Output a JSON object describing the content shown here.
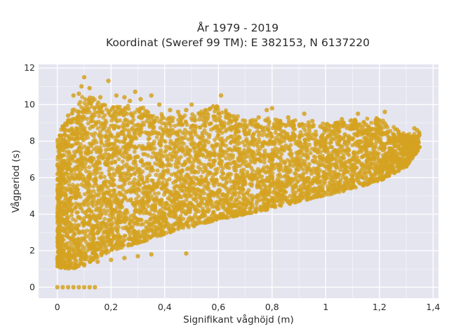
{
  "chart_data": {
    "type": "scatter",
    "title_lines": [
      "År 1979 - 2019",
      "Koordinat (Sweref 99 TM): E 382153, N 6137220"
    ],
    "xlabel": "Signifikant våghöjd (m)",
    "ylabel": "Vågperiod (s)",
    "xlim": [
      -0.07,
      1.42
    ],
    "ylim": [
      -0.6,
      12.2
    ],
    "x_ticks": [
      0,
      0.2,
      0.4,
      0.6,
      0.8,
      1,
      1.2,
      1.4
    ],
    "x_tick_labels": [
      "0",
      "0,2",
      "0,4",
      "0,6",
      "0,8",
      "1",
      "1,2",
      "1,4"
    ],
    "y_ticks": [
      0,
      2,
      4,
      6,
      8,
      10,
      12
    ],
    "y_tick_labels": [
      "0",
      "2",
      "4",
      "6",
      "8",
      "10",
      "12"
    ],
    "grid": true,
    "legend": "none",
    "series_color": "#d4a220",
    "background_color": "#e5e5f0",
    "band_description_points": [
      {
        "x": 0.0,
        "y_low": 1.1,
        "y_high": 8.8
      },
      {
        "x": 0.05,
        "y_low": 1.0,
        "y_high": 10.5
      },
      {
        "x": 0.1,
        "y_low": 1.2,
        "y_high": 11.4
      },
      {
        "x": 0.2,
        "y_low": 2.0,
        "y_high": 10.6
      },
      {
        "x": 0.3,
        "y_low": 2.4,
        "y_high": 10.6
      },
      {
        "x": 0.4,
        "y_low": 2.9,
        "y_high": 10.0
      },
      {
        "x": 0.5,
        "y_low": 3.3,
        "y_high": 10.0
      },
      {
        "x": 0.6,
        "y_low": 3.7,
        "y_high": 10.5
      },
      {
        "x": 0.7,
        "y_low": 4.0,
        "y_high": 9.6
      },
      {
        "x": 0.8,
        "y_low": 4.3,
        "y_high": 9.7
      },
      {
        "x": 0.9,
        "y_low": 4.7,
        "y_high": 9.5
      },
      {
        "x": 1.0,
        "y_low": 5.0,
        "y_high": 9.3
      },
      {
        "x": 1.1,
        "y_low": 5.4,
        "y_high": 9.5
      },
      {
        "x": 1.2,
        "y_low": 5.8,
        "y_high": 9.6
      },
      {
        "x": 1.3,
        "y_low": 6.6,
        "y_high": 8.5
      },
      {
        "x": 1.35,
        "y_low": 7.6,
        "y_high": 8.6
      }
    ],
    "points": [
      {
        "x": 0.0,
        "y": 0
      },
      {
        "x": 0.02,
        "y": 0
      },
      {
        "x": 0.04,
        "y": 0
      },
      {
        "x": 0.06,
        "y": 0
      },
      {
        "x": 0.08,
        "y": 0
      },
      {
        "x": 0.1,
        "y": 0
      },
      {
        "x": 0.12,
        "y": 0
      },
      {
        "x": 0.14,
        "y": 0
      },
      {
        "x": 0.0,
        "y": 1.5
      },
      {
        "x": 0.02,
        "y": 1.2
      },
      {
        "x": 0.05,
        "y": 1.1
      },
      {
        "x": 0.1,
        "y": 1.2
      },
      {
        "x": 0.15,
        "y": 1.4
      },
      {
        "x": 0.2,
        "y": 1.5
      },
      {
        "x": 0.25,
        "y": 1.6
      },
      {
        "x": 0.3,
        "y": 1.7
      },
      {
        "x": 0.35,
        "y": 1.8
      },
      {
        "x": 0.48,
        "y": 1.85
      },
      {
        "x": 0.01,
        "y": 6.4
      },
      {
        "x": 0.02,
        "y": 8.8
      },
      {
        "x": 0.04,
        "y": 9.4
      },
      {
        "x": 0.06,
        "y": 10.5
      },
      {
        "x": 0.08,
        "y": 10.6
      },
      {
        "x": 0.09,
        "y": 11.0
      },
      {
        "x": 0.1,
        "y": 11.5
      },
      {
        "x": 0.12,
        "y": 10.9
      },
      {
        "x": 0.13,
        "y": 10.2
      },
      {
        "x": 0.16,
        "y": 10.4
      },
      {
        "x": 0.19,
        "y": 11.3
      },
      {
        "x": 0.22,
        "y": 10.5
      },
      {
        "x": 0.25,
        "y": 10.4
      },
      {
        "x": 0.27,
        "y": 10.2
      },
      {
        "x": 0.29,
        "y": 10.7
      },
      {
        "x": 0.31,
        "y": 10.3
      },
      {
        "x": 0.35,
        "y": 10.5
      },
      {
        "x": 0.38,
        "y": 10.0
      },
      {
        "x": 0.42,
        "y": 9.7
      },
      {
        "x": 0.45,
        "y": 9.6
      },
      {
        "x": 0.48,
        "y": 9.7
      },
      {
        "x": 0.5,
        "y": 10.0
      },
      {
        "x": 0.53,
        "y": 9.5
      },
      {
        "x": 0.55,
        "y": 9.3
      },
      {
        "x": 0.58,
        "y": 9.9
      },
      {
        "x": 0.61,
        "y": 10.5
      },
      {
        "x": 0.63,
        "y": 9.4
      },
      {
        "x": 0.66,
        "y": 9.2
      },
      {
        "x": 0.7,
        "y": 8.9
      },
      {
        "x": 0.72,
        "y": 9.1
      },
      {
        "x": 0.75,
        "y": 9.3
      },
      {
        "x": 0.78,
        "y": 9.7
      },
      {
        "x": 0.8,
        "y": 9.8
      },
      {
        "x": 0.83,
        "y": 9.1
      },
      {
        "x": 0.86,
        "y": 9.3
      },
      {
        "x": 0.88,
        "y": 8.7
      },
      {
        "x": 0.92,
        "y": 9.5
      },
      {
        "x": 0.95,
        "y": 9.1
      },
      {
        "x": 0.98,
        "y": 8.8
      },
      {
        "x": 1.0,
        "y": 8.7
      },
      {
        "x": 1.03,
        "y": 8.5
      },
      {
        "x": 1.06,
        "y": 9.2
      },
      {
        "x": 1.1,
        "y": 8.7
      },
      {
        "x": 1.12,
        "y": 9.5
      },
      {
        "x": 1.15,
        "y": 8.9
      },
      {
        "x": 1.18,
        "y": 8.3
      },
      {
        "x": 1.2,
        "y": 8.7
      },
      {
        "x": 1.22,
        "y": 9.6
      },
      {
        "x": 1.25,
        "y": 8.0
      },
      {
        "x": 1.28,
        "y": 8.2
      },
      {
        "x": 1.3,
        "y": 7.8
      },
      {
        "x": 1.33,
        "y": 8.7
      },
      {
        "x": 1.34,
        "y": 8.6
      }
    ]
  }
}
